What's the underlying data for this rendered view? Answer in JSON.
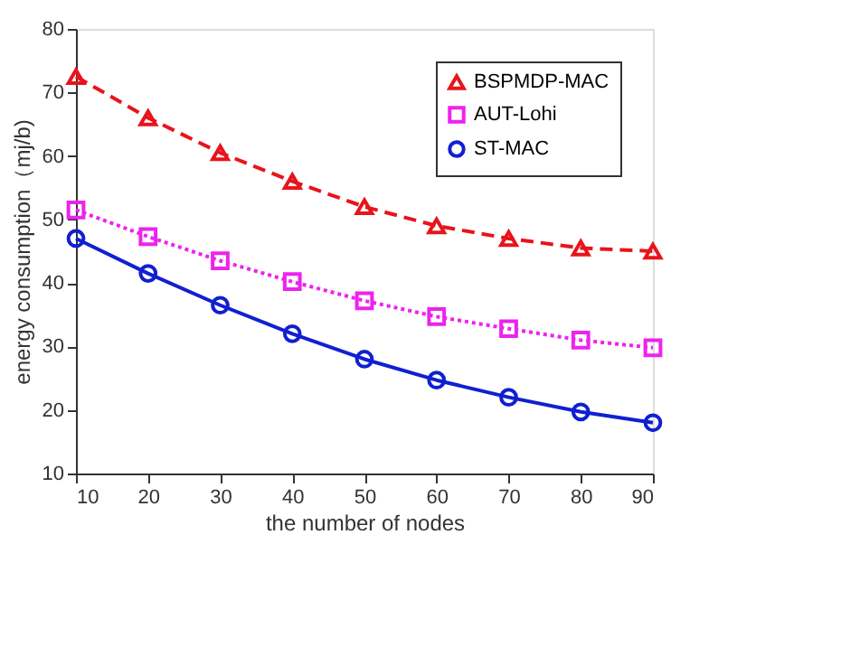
{
  "chart_data": {
    "type": "line",
    "xlabel": "the number of nodes",
    "ylabel": "energy consumption（mj/b)",
    "x": [
      10,
      20,
      30,
      40,
      50,
      60,
      70,
      80,
      90
    ],
    "series": [
      {
        "name": "BSPMDP-MAC",
        "color": "#e8141b",
        "marker": "triangle",
        "line_style": "dashed",
        "values": [
          72.5,
          66,
          60.5,
          56,
          52,
          49,
          47,
          45.5,
          45
        ]
      },
      {
        "name": "AUT-Lohi",
        "color": "#ee22ee",
        "marker": "square",
        "line_style": "dotted",
        "values": [
          51.5,
          47.3,
          43.5,
          40.2,
          37.2,
          34.7,
          32.8,
          31,
          29.8
        ]
      },
      {
        "name": "ST-MAC",
        "color": "#1020d0",
        "marker": "circle",
        "line_style": "solid",
        "values": [
          47,
          41.5,
          36.5,
          32,
          28,
          24.7,
          22,
          19.7,
          18
        ]
      }
    ],
    "xlim": [
      10,
      90
    ],
    "xticks": [
      10,
      20,
      30,
      40,
      50,
      60,
      70,
      80,
      90
    ],
    "ylim": [
      10,
      80
    ],
    "yticks": [
      10,
      20,
      30,
      40,
      50,
      60,
      70,
      80
    ],
    "grid": false,
    "legend": "top right"
  }
}
